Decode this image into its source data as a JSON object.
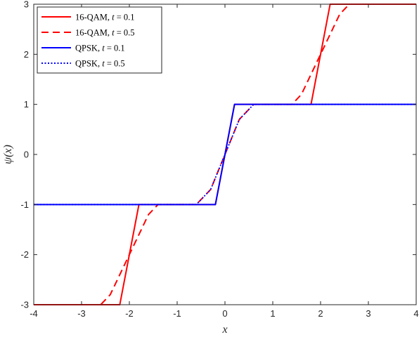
{
  "chart_data": {
    "type": "line",
    "title": "",
    "xlabel": "x",
    "ylabel": "ψ(x)",
    "xlim": [
      -4,
      4
    ],
    "ylim": [
      -3,
      3
    ],
    "xticks": [
      -4,
      -3,
      -2,
      -1,
      0,
      1,
      2,
      3,
      4
    ],
    "yticks": [
      -3,
      -2,
      -1,
      0,
      1,
      2,
      3
    ],
    "xtick_labels": [
      "-4",
      "-3",
      "-2",
      "-1",
      "0",
      "1",
      "2",
      "3",
      "4"
    ],
    "ytick_labels": [
      "-3",
      "-2",
      "-1",
      "0",
      "1",
      "2",
      "3"
    ],
    "grid": false,
    "legend_position": "top-left",
    "series": [
      {
        "name": "16-QAM, t = 0.1",
        "legend_prefix": "16-QAM, ",
        "legend_var": "t",
        "legend_suffix": " = 0.1",
        "color": "#ff0000",
        "style": "solid",
        "x": [
          -4,
          -2.2,
          -1.8,
          -0.2,
          0.2,
          1.8,
          2.2,
          4
        ],
        "y": [
          -3,
          -3,
          -1,
          -1,
          1,
          1,
          3,
          3
        ]
      },
      {
        "name": "16-QAM, t = 0.5",
        "legend_prefix": "16-QAM, ",
        "legend_var": "t",
        "legend_suffix": " = 0.5",
        "color": "#ff0000",
        "style": "dashed",
        "x": [
          -4,
          -2.6,
          -2.4,
          -2.0,
          -1.6,
          -1.4,
          -0.6,
          -0.3,
          0,
          0.3,
          0.6,
          1.4,
          1.6,
          2.0,
          2.4,
          2.6,
          4
        ],
        "y": [
          -3,
          -3,
          -2.8,
          -2.0,
          -1.2,
          -1,
          -1,
          -0.7,
          0,
          0.7,
          1,
          1,
          1.2,
          2.0,
          2.8,
          3,
          3
        ]
      },
      {
        "name": "QPSK, t = 0.1",
        "legend_prefix": "QPSK, ",
        "legend_var": "t",
        "legend_suffix": " = 0.1",
        "color": "#0000ff",
        "style": "solid",
        "x": [
          -4,
          -0.2,
          0.2,
          4
        ],
        "y": [
          -1,
          -1,
          1,
          1
        ]
      },
      {
        "name": "QPSK, t = 0.5",
        "legend_prefix": "QPSK, ",
        "legend_var": "t",
        "legend_suffix": " = 0.5",
        "color": "#0000ff",
        "style": "dotted",
        "x": [
          -4,
          -0.6,
          -0.3,
          0,
          0.3,
          0.6,
          4
        ],
        "y": [
          -1,
          -1,
          -0.7,
          0,
          0.7,
          1,
          1
        ]
      }
    ]
  }
}
